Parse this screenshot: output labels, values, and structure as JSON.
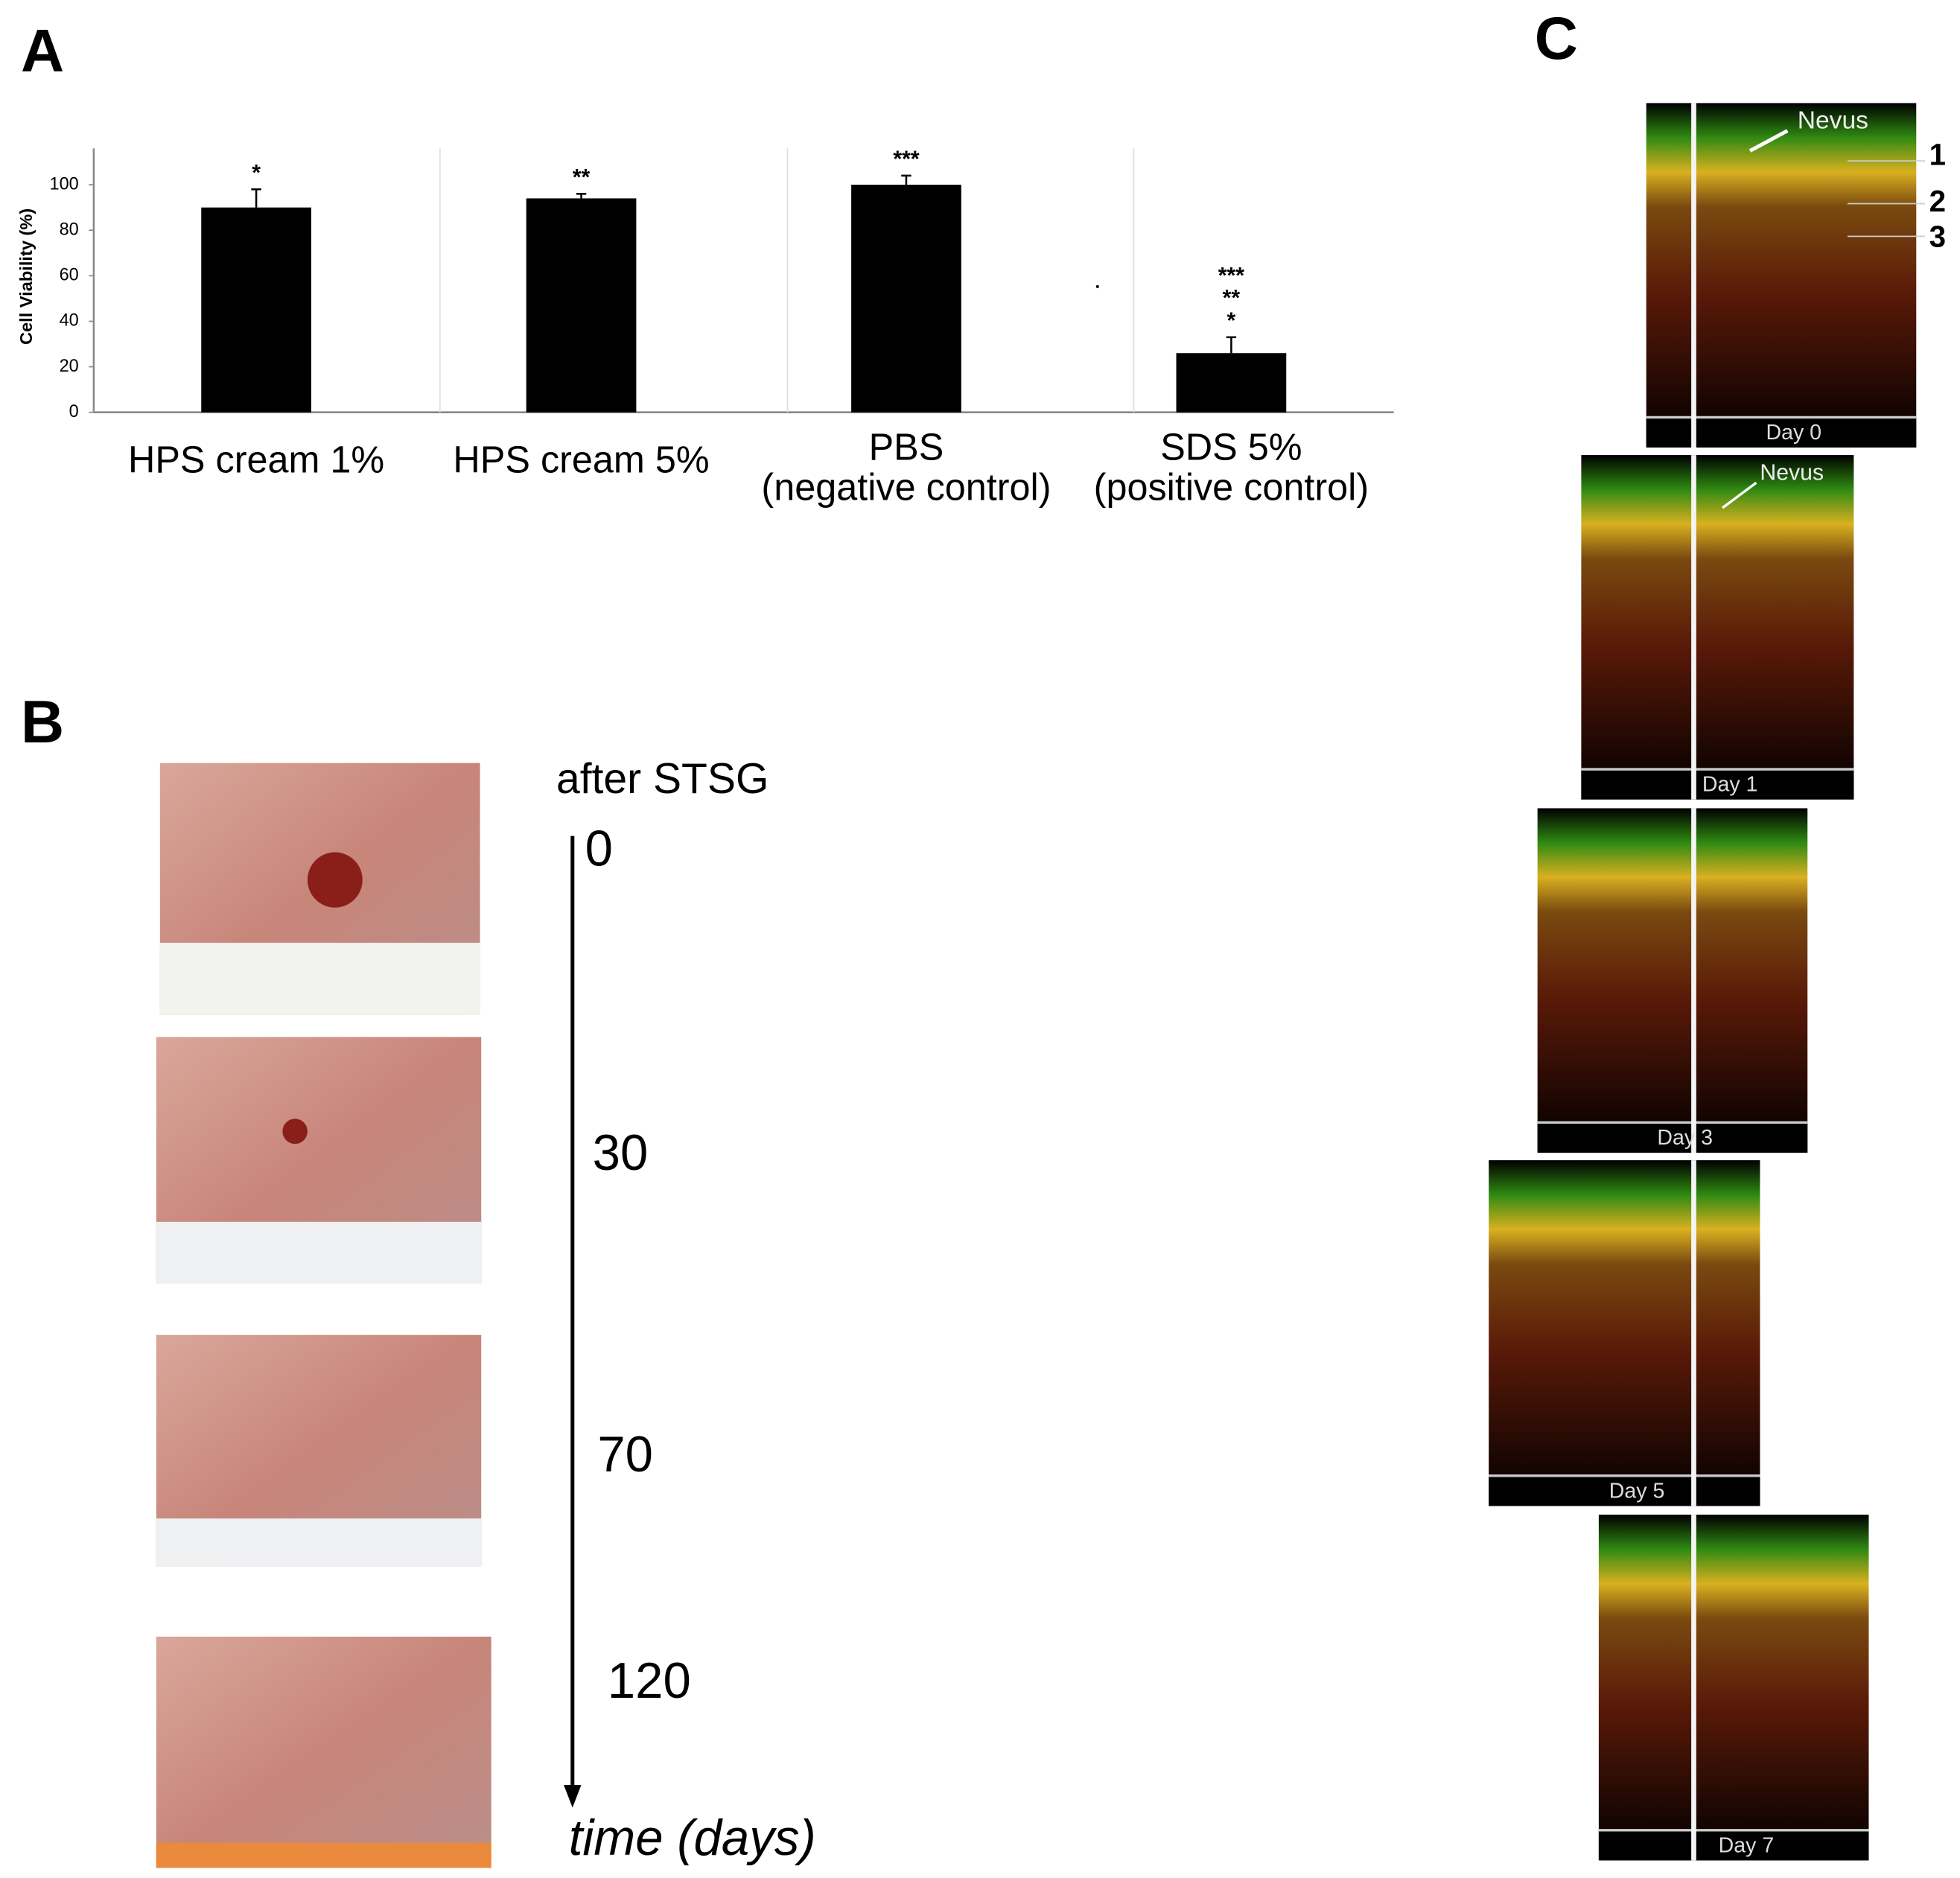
{
  "chart_data": {
    "type": "bar",
    "panel_label": "A",
    "y_label": "Cell Viability (%)",
    "categories": [
      "HPS cream 1%",
      "HPS cream 5%",
      "PBS\n(negative control)",
      "SDS 5%\n(positive control)"
    ],
    "values": [
      90,
      94,
      100,
      26
    ],
    "errors": [
      8,
      2,
      4,
      7
    ],
    "significance": [
      [
        "*"
      ],
      [
        "**"
      ],
      [
        "***"
      ],
      [
        "***",
        "**",
        "*"
      ]
    ],
    "color": "#000000",
    "ylim": [
      0,
      116
    ],
    "yticks": [
      0,
      20,
      40,
      60,
      80,
      100
    ],
    "grid": false
  },
  "panel_b": {
    "label": "B",
    "header": "after STSG",
    "timepoints": [
      "0",
      "30",
      "70",
      "120"
    ],
    "axis_label": "time (days)"
  },
  "panel_c": {
    "label": "C",
    "nevus_labels": [
      "Nevus",
      "Nevus"
    ],
    "layer_labels": [
      "1",
      "2",
      "3"
    ],
    "days": [
      "Day 0",
      "Day 1",
      "Day 3",
      "Day 5",
      "Day 7"
    ]
  }
}
